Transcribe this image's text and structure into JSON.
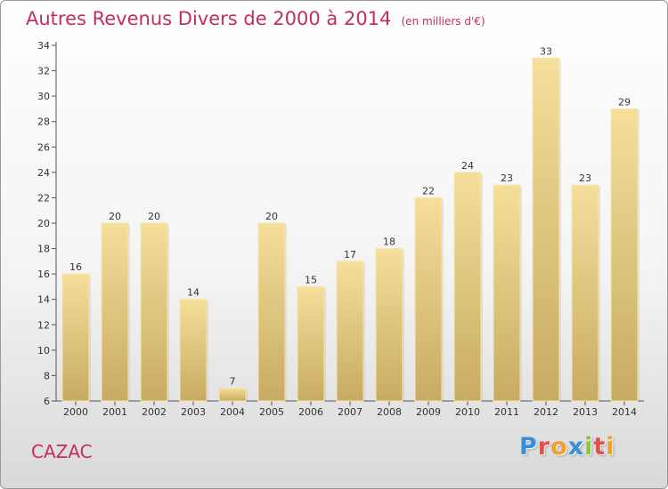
{
  "chart_data": {
    "type": "bar",
    "title": "Autres Revenus Divers de 2000 à 2014",
    "unit": "(en milliers d'€)",
    "categories": [
      "2000",
      "2001",
      "2002",
      "2003",
      "2004",
      "2005",
      "2006",
      "2007",
      "2008",
      "2009",
      "2010",
      "2011",
      "2012",
      "2013",
      "2014"
    ],
    "values": [
      16,
      20,
      20,
      14,
      7,
      20,
      15,
      17,
      18,
      22,
      24,
      23,
      33,
      23,
      29
    ],
    "ylim": [
      6,
      34
    ],
    "yticks": [
      6,
      8,
      10,
      12,
      14,
      16,
      18,
      20,
      22,
      24,
      26,
      28,
      30,
      32,
      34
    ],
    "grid": false,
    "bar_color_top": "#f5df9a",
    "bar_color_bottom": "#c8ab63"
  },
  "place": "CAZAC",
  "logo": {
    "letters": [
      "P",
      "r",
      "o",
      "x",
      "i",
      "t",
      "i"
    ],
    "colors": [
      "#3a8fd9",
      "#e2504a",
      "#f0a030",
      "#3a8fd9",
      "#8ac440",
      "#e2504a",
      "#f0a030"
    ]
  }
}
